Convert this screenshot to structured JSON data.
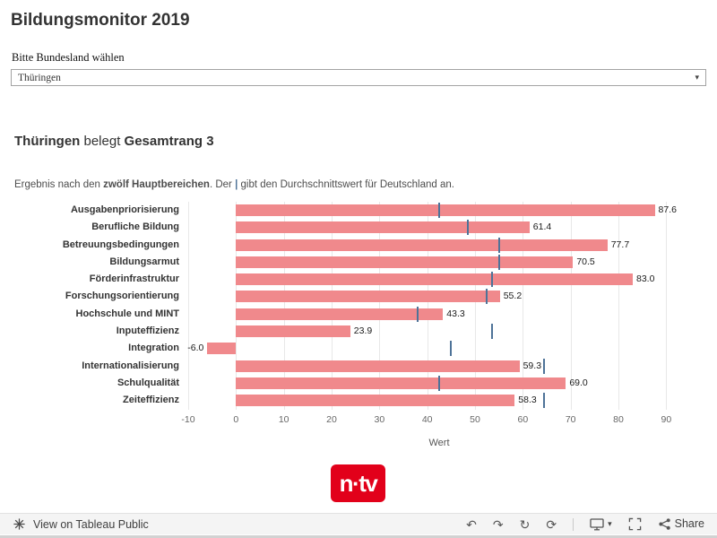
{
  "header": {
    "title": "Bildungsmonitor 2019"
  },
  "filter": {
    "label": "Bitte Bundesland wählen",
    "selected": "Thüringen",
    "caret": "▾"
  },
  "summary": {
    "state": "Thüringen",
    "middle": " belegt ",
    "rank": "Gesamtrang 3"
  },
  "description": {
    "part1": "Ergebnis nach den ",
    "bold1": "zwölf Hauptbereichen",
    "part2": ". Der ",
    "pipe": "|",
    "part3": " gibt den Durchschnittswert für Deutschland an."
  },
  "chart_data": {
    "type": "bar",
    "orientation": "horizontal",
    "title": "Ergebnis nach den zwölf Hauptbereichen",
    "categories": [
      "Ausgabenpriorisierung",
      "Berufliche Bildung",
      "Betreuungsbedingungen",
      "Bildungsarmut",
      "Förderinfrastruktur",
      "Forschungsorientierung",
      "Hochschule und MINT",
      "Inputeffizienz",
      "Integration",
      "Internationalisierung",
      "Schulqualität",
      "Zeiteffizienz"
    ],
    "values": [
      87.6,
      61.4,
      77.7,
      70.5,
      83.0,
      55.2,
      43.3,
      23.9,
      -6.0,
      59.3,
      69.0,
      58.3
    ],
    "value_labels": [
      "87.6",
      "61.4",
      "77.7",
      "70.5",
      "83.0",
      "55.2",
      "43.3",
      "23.9",
      "-6.0",
      "59.3",
      "69.0",
      "58.3"
    ],
    "reference_values": [
      42.5,
      48.5,
      55,
      55,
      53.5,
      52.5,
      38,
      53.5,
      45,
      64.5,
      42.5,
      64.5
    ],
    "reference_meaning": "Durchschnittswert für Deutschland",
    "xlabel": "Wert",
    "x_ticks": [
      -10,
      0,
      10,
      20,
      30,
      40,
      50,
      60,
      70,
      80,
      90
    ],
    "xlim": [
      -10,
      95
    ],
    "grid": true,
    "legend": "none",
    "bar_color": "#f0898c",
    "reference_color": "#4e7398"
  },
  "logo": {
    "text": "n·tv",
    "color": "#e2001a"
  },
  "toolbar": {
    "left_label": "View on Tableau Public",
    "history_icons": [
      {
        "name": "undo-icon",
        "glyph": "↶"
      },
      {
        "name": "redo-icon",
        "glyph": "↷"
      },
      {
        "name": "reset-icon",
        "glyph": "↻"
      },
      {
        "name": "refresh-icon",
        "glyph": "⟳"
      }
    ],
    "download_caret": "▾",
    "share_label": "Share"
  }
}
